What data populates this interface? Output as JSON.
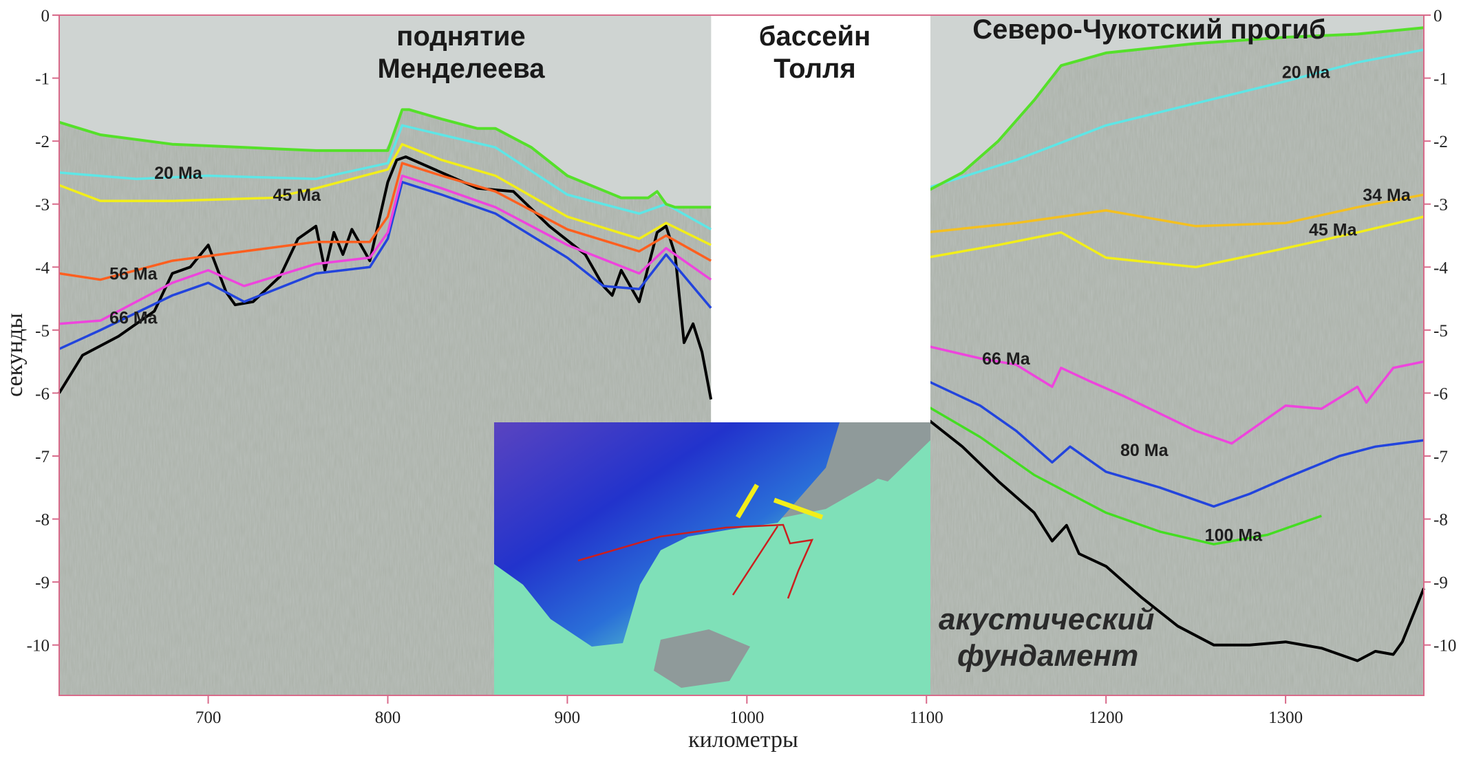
{
  "chart_data": {
    "type": "line",
    "xlabel": "километры",
    "ylabel": "секунды",
    "xlim": [
      617,
      1377
    ],
    "ylim": [
      -10.8,
      0
    ],
    "x_ticks": [
      "700",
      "800",
      "900",
      "1000",
      "1100",
      "1200",
      "1300"
    ],
    "y_ticks": [
      "0",
      "-1",
      "-2",
      "-3",
      "-4",
      "-5",
      "-6",
      "-7",
      "-8",
      "-9",
      "-10"
    ],
    "grid": false,
    "colors": {
      "seafloor": "#55e02a",
      "20 Ma": "#5ee6e6",
      "34 Ma": "#f4c020",
      "45 Ma": "#f2ee1a",
      "56 Ma": "#ff5f1f",
      "66 Ma": "#ee44dd",
      "80 Ma": "#2244dd",
      "100 Ma": "#44dd22",
      "basement": "#000000",
      "water": "#cfd4d2",
      "sediment": "#b9bfba"
    },
    "panels": [
      {
        "region": "left",
        "title_lines": [
          "поднятие",
          "Менделеева"
        ],
        "x_range": [
          617,
          980
        ],
        "horizon_labels": [
          {
            "text": "20 Ma",
            "x": 670,
            "y": -2.6
          },
          {
            "text": "45 Ma",
            "x": 736,
            "y": -2.95
          },
          {
            "text": "56 Ma",
            "x": 645,
            "y": -4.2
          },
          {
            "text": "66 Ma",
            "x": 645,
            "y": -4.9
          }
        ],
        "horizons": [
          {
            "name": "seafloor",
            "x": [
              617,
              640,
              680,
              720,
              760,
              800,
              808,
              812,
              830,
              850,
              860,
              880,
              900,
              930,
              945,
              950,
              955,
              960,
              980
            ],
            "y": [
              -1.7,
              -1.9,
              -2.05,
              -2.1,
              -2.15,
              -2.15,
              -1.5,
              -1.5,
              -1.65,
              -1.8,
              -1.8,
              -2.1,
              -2.55,
              -2.9,
              -2.9,
              -2.8,
              -3.0,
              -3.05,
              -3.05
            ]
          },
          {
            "name": "20 Ma",
            "x": [
              617,
              660,
              700,
              760,
              800,
              808,
              830,
              860,
              900,
              940,
              955,
              980
            ],
            "y": [
              -2.5,
              -2.6,
              -2.55,
              -2.6,
              -2.35,
              -1.75,
              -1.9,
              -2.1,
              -2.85,
              -3.15,
              -3.0,
              -3.4
            ]
          },
          {
            "name": "45 Ma",
            "x": [
              617,
              640,
              680,
              736,
              760,
              800,
              808,
              830,
              860,
              900,
              940,
              955,
              980
            ],
            "y": [
              -2.7,
              -2.95,
              -2.95,
              -2.9,
              -2.75,
              -2.45,
              -2.05,
              -2.3,
              -2.55,
              -3.2,
              -3.55,
              -3.3,
              -3.65
            ]
          },
          {
            "name": "56 Ma",
            "x": [
              617,
              640,
              680,
              720,
              760,
              790,
              800,
              808,
              830,
              860,
              900,
              940,
              955,
              980
            ],
            "y": [
              -4.1,
              -4.2,
              -3.9,
              -3.75,
              -3.6,
              -3.6,
              -3.2,
              -2.35,
              -2.55,
              -2.8,
              -3.4,
              -3.75,
              -3.5,
              -3.9
            ]
          },
          {
            "name": "66 Ma",
            "x": [
              617,
              640,
              680,
              700,
              720,
              760,
              790,
              800,
              808,
              830,
              860,
              900,
              940,
              955,
              980
            ],
            "y": [
              -4.9,
              -4.85,
              -4.25,
              -4.05,
              -4.3,
              -3.95,
              -3.85,
              -3.45,
              -2.55,
              -2.75,
              -3.05,
              -3.65,
              -4.1,
              -3.7,
              -4.2
            ]
          },
          {
            "name": "80 Ma",
            "x": [
              617,
              640,
              680,
              700,
              720,
              760,
              790,
              800,
              808,
              830,
              860,
              900,
              920,
              940,
              955,
              980
            ],
            "y": [
              -5.3,
              -5.0,
              -4.45,
              -4.25,
              -4.55,
              -4.1,
              -4.0,
              -3.55,
              -2.65,
              -2.85,
              -3.15,
              -3.85,
              -4.3,
              -4.35,
              -3.8,
              -4.65
            ]
          },
          {
            "name": "basement",
            "x": [
              617,
              630,
              650,
              670,
              680,
              690,
              700,
              710,
              715,
              725,
              740,
              750,
              760,
              765,
              770,
              775,
              780,
              790,
              800,
              805,
              810,
              830,
              850,
              870,
              890,
              910,
              920,
              925,
              930,
              940,
              950,
              955,
              960,
              965,
              970,
              975,
              980
            ],
            "y": [
              -6.0,
              -5.4,
              -5.1,
              -4.7,
              -4.1,
              -4.0,
              -3.65,
              -4.4,
              -4.6,
              -4.55,
              -4.15,
              -3.55,
              -3.35,
              -4.05,
              -3.45,
              -3.8,
              -3.4,
              -3.9,
              -2.65,
              -2.3,
              -2.25,
              -2.5,
              -2.75,
              -2.8,
              -3.35,
              -3.8,
              -4.3,
              -4.45,
              -4.05,
              -4.55,
              -3.45,
              -3.35,
              -3.8,
              -5.2,
              -4.9,
              -5.35,
              -6.1
            ]
          }
        ]
      },
      {
        "region": "middle",
        "title_lines": [
          "бассейн",
          "Толля"
        ]
      },
      {
        "region": "right",
        "title_lines": [
          "Северо-Чукотский прогиб"
        ],
        "x_range": [
          1100,
          1377
        ],
        "horizon_labels": [
          {
            "text": "20 Ma",
            "x": 1298,
            "y": -1.0
          },
          {
            "text": "34 Ma",
            "x": 1343,
            "y": -2.95
          },
          {
            "text": "45 Ma",
            "x": 1313,
            "y": -3.5
          },
          {
            "text": "66 Ma",
            "x": 1131,
            "y": -5.55
          },
          {
            "text": "80 Ma",
            "x": 1208,
            "y": -7.0
          },
          {
            "text": "100 Ma",
            "x": 1255,
            "y": -8.35
          }
        ],
        "basement_label_lines": [
          "акустический",
          "фундамент"
        ],
        "horizons": [
          {
            "name": "seafloor",
            "x": [
              1100,
              1120,
              1140,
              1160,
              1175,
              1200,
              1250,
              1300,
              1340,
              1377
            ],
            "y": [
              -2.8,
              -2.5,
              -2.0,
              -1.35,
              -0.8,
              -0.6,
              -0.45,
              -0.35,
              -0.3,
              -0.2
            ]
          },
          {
            "name": "20 Ma",
            "x": [
              1100,
              1150,
              1200,
              1250,
              1300,
              1340,
              1377
            ],
            "y": [
              -2.75,
              -2.3,
              -1.75,
              -1.4,
              -1.05,
              -0.75,
              -0.55
            ]
          },
          {
            "name": "34 Ma",
            "x": [
              1100,
              1150,
              1200,
              1250,
              1300,
              1340,
              1377
            ],
            "y": [
              -3.45,
              -3.3,
              -3.1,
              -3.35,
              -3.3,
              -3.05,
              -2.85
            ]
          },
          {
            "name": "45 Ma",
            "x": [
              1100,
              1140,
              1175,
              1200,
              1250,
              1300,
              1340,
              1377
            ],
            "y": [
              -3.85,
              -3.65,
              -3.45,
              -3.85,
              -4.0,
              -3.7,
              -3.45,
              -3.2
            ]
          },
          {
            "name": "66 Ma",
            "x": [
              1100,
              1130,
              1150,
              1170,
              1175,
              1190,
              1210,
              1250,
              1270,
              1300,
              1320,
              1340,
              1345,
              1360,
              1377
            ],
            "y": [
              -5.25,
              -5.45,
              -5.55,
              -5.9,
              -5.6,
              -5.8,
              -6.05,
              -6.6,
              -6.8,
              -6.2,
              -6.25,
              -5.9,
              -6.15,
              -5.6,
              -5.5
            ]
          },
          {
            "name": "80 Ma",
            "x": [
              1100,
              1130,
              1150,
              1170,
              1180,
              1200,
              1230,
              1260,
              1280,
              1300,
              1330,
              1350,
              1377
            ],
            "y": [
              -5.8,
              -6.2,
              -6.6,
              -7.1,
              -6.85,
              -7.25,
              -7.5,
              -7.8,
              -7.6,
              -7.35,
              -7.0,
              -6.85,
              -6.75
            ]
          },
          {
            "name": "100 Ma",
            "x": [
              1100,
              1130,
              1160,
              1180,
              1200,
              1230,
              1260,
              1290,
              1320
            ],
            "y": [
              -6.2,
              -6.7,
              -7.3,
              -7.6,
              -7.9,
              -8.2,
              -8.4,
              -8.25,
              -7.95
            ]
          },
          {
            "name": "basement",
            "x": [
              1100,
              1120,
              1140,
              1160,
              1170,
              1178,
              1185,
              1200,
              1220,
              1240,
              1260,
              1280,
              1300,
              1320,
              1340,
              1350,
              1360,
              1365,
              1377
            ],
            "y": [
              -6.4,
              -6.85,
              -7.4,
              -7.9,
              -8.35,
              -8.1,
              -8.55,
              -8.75,
              -9.25,
              -9.7,
              -10.0,
              -10.0,
              -9.95,
              -10.05,
              -10.25,
              -10.1,
              -10.15,
              -9.95,
              -9.1
            ]
          }
        ]
      }
    ]
  }
}
